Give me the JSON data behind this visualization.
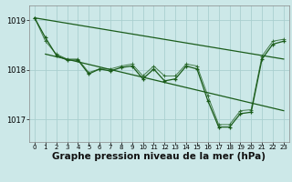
{
  "bg_color": "#cce8e8",
  "grid_color": "#aacfcf",
  "line_color": "#1a5c1a",
  "marker_color": "#1a5c1a",
  "xlabel": "Graphe pression niveau de la mer (hPa)",
  "xlabel_fontsize": 7.5,
  "yticks": [
    1017,
    1018,
    1019
  ],
  "xlim": [
    -0.5,
    23.5
  ],
  "ylim": [
    1016.55,
    1019.3
  ],
  "series1_x": [
    0,
    1,
    2,
    3,
    4,
    5,
    6,
    7,
    8,
    9,
    10,
    11,
    12,
    13,
    14,
    15,
    16,
    17,
    18,
    19,
    20,
    21,
    22,
    23
  ],
  "series1_y": [
    1019.05,
    1018.65,
    1018.3,
    1018.2,
    1018.2,
    1017.92,
    1018.02,
    1017.98,
    1018.05,
    1018.08,
    1017.82,
    1018.02,
    1017.78,
    1017.82,
    1018.08,
    1018.02,
    1017.38,
    1016.85,
    1016.85,
    1017.12,
    1017.15,
    1018.22,
    1018.52,
    1018.58
  ],
  "series2_x": [
    0,
    1,
    2,
    3,
    4,
    5,
    6,
    7,
    8,
    9,
    10,
    11,
    12,
    13,
    14,
    15,
    16,
    17,
    18,
    19,
    20,
    21,
    22,
    23
  ],
  "series2_y": [
    1019.05,
    1018.58,
    1018.32,
    1018.22,
    1018.22,
    1017.95,
    1018.02,
    1018.02,
    1018.08,
    1018.12,
    1017.88,
    1018.08,
    1017.88,
    1017.88,
    1018.12,
    1018.08,
    1017.48,
    1016.9,
    1016.9,
    1017.18,
    1017.2,
    1018.28,
    1018.58,
    1018.62
  ],
  "trend1_x": [
    0,
    23
  ],
  "trend1_y": [
    1019.05,
    1018.22
  ],
  "trend2_x": [
    1,
    23
  ],
  "trend2_y": [
    1018.32,
    1017.18
  ]
}
